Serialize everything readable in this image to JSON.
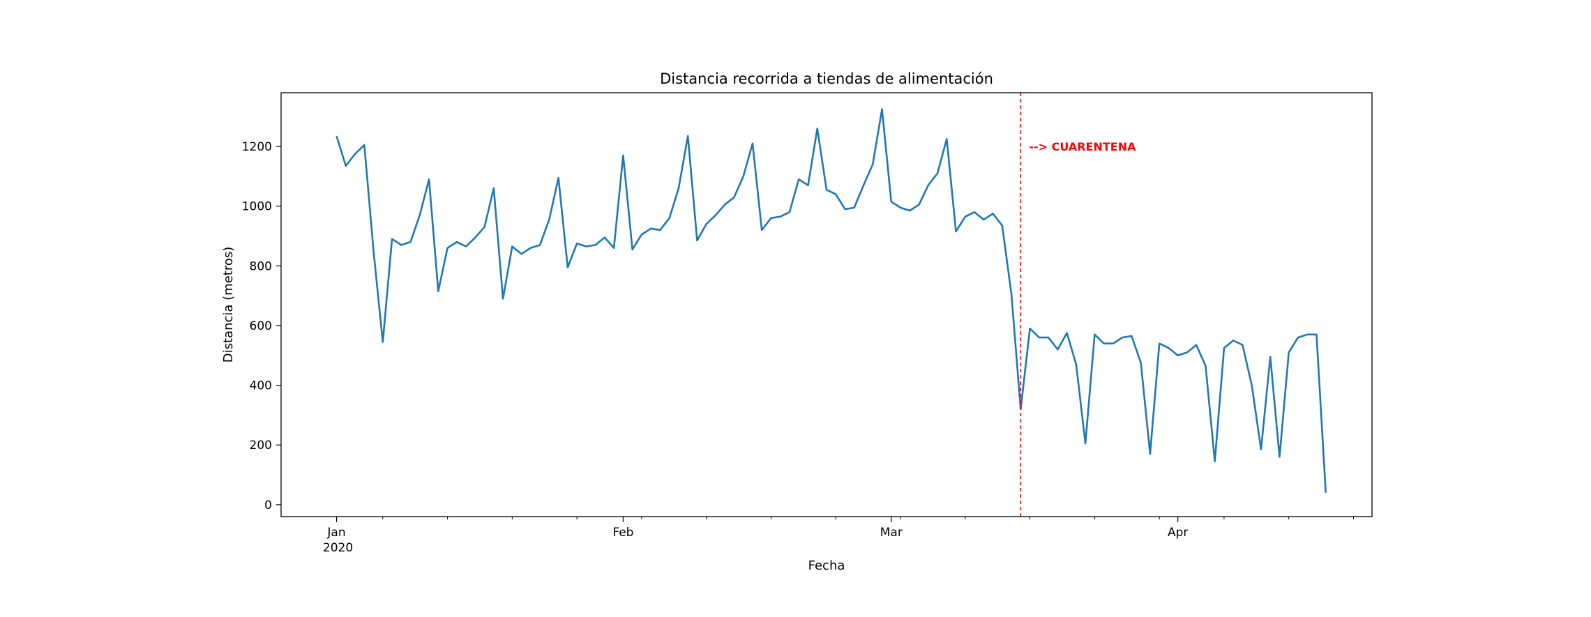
{
  "chart_data": {
    "type": "line",
    "title": "Distancia recorrida a tiendas de alimentación",
    "xlabel": "Fecha",
    "ylabel": "Distancia (metros)",
    "ylim": [
      -40,
      1380
    ],
    "y_ticks": [
      0,
      200,
      400,
      600,
      800,
      1000,
      1200
    ],
    "x_ticks": [
      {
        "date": "2020-01-01",
        "label": "Jan",
        "sublabel": "2020"
      },
      {
        "date": "2020-02-01",
        "label": "Feb",
        "sublabel": ""
      },
      {
        "date": "2020-03-01",
        "label": "Mar",
        "sublabel": ""
      },
      {
        "date": "2020-04-01",
        "label": "Apr",
        "sublabel": ""
      }
    ],
    "xlim": [
      "2019-12-26",
      "2020-04-22"
    ],
    "grid": false,
    "line_color": "#1f77b4",
    "series": [
      {
        "start_date": "2020-01-01",
        "values": [
          1235,
          1135,
          1175,
          1205,
          850,
          545,
          890,
          870,
          880,
          970,
          1090,
          715,
          860,
          880,
          865,
          895,
          930,
          1060,
          690,
          865,
          840,
          860,
          870,
          955,
          1095,
          795,
          875,
          865,
          870,
          895,
          860,
          1170,
          855,
          905,
          925,
          920,
          960,
          1060,
          1235,
          885,
          940,
          970,
          1005,
          1030,
          1100,
          1210,
          920,
          960,
          965,
          980,
          1090,
          1070,
          1260,
          1055,
          1040,
          990,
          995,
          1070,
          1140,
          1325,
          1015,
          995,
          985,
          1005,
          1070,
          1110,
          1225,
          915,
          965,
          980,
          955,
          975,
          935,
          705,
          320,
          590,
          560,
          560,
          520,
          575,
          470,
          205,
          570,
          540,
          540,
          560,
          565,
          475,
          170,
          540,
          525,
          500,
          510,
          535,
          465,
          145,
          525,
          550,
          535,
          400,
          185,
          495,
          160,
          510,
          560,
          570,
          570,
          40
        ]
      }
    ],
    "annotation": {
      "date": "2020-03-15",
      "label": "--> CUARENTENA",
      "color": "#ff0000"
    }
  }
}
